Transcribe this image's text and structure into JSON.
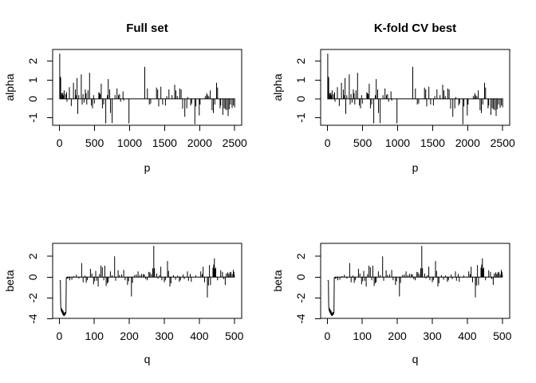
{
  "colors": {
    "background": "#ffffff",
    "line": "#000000",
    "text": "#000000"
  },
  "chart_data": {
    "type": "line",
    "layout": {
      "rows": 2,
      "cols": 2,
      "grid": false,
      "legend": "none"
    },
    "note": "2x2 grid of R base-graphics coefficient line plots; left column (Full set) and right column (K-fold CV best) display identical series",
    "charts": [
      {
        "id": "top-left",
        "row": "top",
        "type": "line",
        "title": "Full set",
        "xlabel": "p",
        "ylabel": "alpha",
        "x_ticks": [
          0,
          500,
          1000,
          1500,
          2000,
          2500
        ],
        "y_ticks": [
          -1,
          0,
          1,
          2
        ],
        "xlim": [
          -99,
          2600
        ],
        "ylim": [
          -1.4,
          2.62
        ],
        "grid": false,
        "legend": "none",
        "series_ref": "alpha"
      },
      {
        "id": "top-right",
        "row": "top",
        "type": "line",
        "title": "K-fold CV best",
        "xlabel": "p",
        "ylabel": "alpha",
        "x_ticks": [
          0,
          500,
          1000,
          1500,
          2000,
          2500
        ],
        "y_ticks": [
          -1,
          0,
          1,
          2
        ],
        "xlim": [
          -99,
          2600
        ],
        "ylim": [
          -1.4,
          2.62
        ],
        "grid": false,
        "legend": "none",
        "series_ref": "alpha"
      },
      {
        "id": "bottom-left",
        "row": "bottom",
        "type": "line",
        "title": "",
        "xlabel": "q",
        "ylabel": "beta",
        "x_ticks": [
          0,
          100,
          200,
          300,
          400,
          500
        ],
        "y_ticks": [
          -4,
          -2,
          0,
          2
        ],
        "xlim": [
          -19,
          521
        ],
        "ylim": [
          -3.96,
          3.24
        ],
        "grid": false,
        "legend": "none",
        "series_ref": "beta"
      },
      {
        "id": "bottom-right",
        "row": "bottom",
        "type": "line",
        "title": "",
        "xlabel": "q",
        "ylabel": "beta",
        "x_ticks": [
          0,
          100,
          200,
          300,
          400,
          500
        ],
        "y_ticks": [
          -4,
          -2,
          0,
          2
        ],
        "xlim": [
          -19,
          521
        ],
        "ylim": [
          -3.96,
          3.24
        ],
        "grid": false,
        "legend": "none",
        "series_ref": "beta"
      }
    ],
    "series": {
      "alpha": {
        "n_points": 2500,
        "baseline": 0,
        "spikes": [
          [
            2,
            2.4
          ],
          [
            10,
            1.18
          ],
          [
            16,
            1.12
          ],
          [
            30,
            0.3
          ],
          [
            38,
            0.22
          ],
          [
            46,
            0.32
          ],
          [
            58,
            0.2
          ],
          [
            65,
            0.45
          ],
          [
            85,
            0.25
          ],
          [
            100,
            0.35
          ],
          [
            106,
            -0.15
          ],
          [
            140,
            0.62
          ],
          [
            167,
            -0.38
          ],
          [
            198,
            0.85
          ],
          [
            225,
            0.5
          ],
          [
            233,
            0.2
          ],
          [
            250,
            1.1
          ],
          [
            260,
            -0.8
          ],
          [
            275,
            0.2
          ],
          [
            310,
            1.3
          ],
          [
            322,
            -0.3
          ],
          [
            335,
            0.25
          ],
          [
            350,
            -0.2
          ],
          [
            368,
            0.5
          ],
          [
            378,
            0.3
          ],
          [
            388,
            -0.3
          ],
          [
            405,
            0.45
          ],
          [
            428,
            1.38
          ],
          [
            455,
            -0.35
          ],
          [
            470,
            -0.5
          ],
          [
            485,
            0.2
          ],
          [
            497,
            -0.25
          ],
          [
            560,
            0.35
          ],
          [
            572,
            0.3
          ],
          [
            580,
            0.25
          ],
          [
            595,
            0.8
          ],
          [
            612,
            -0.5
          ],
          [
            630,
            -0.3
          ],
          [
            659,
            -1.3
          ],
          [
            682,
            0.2
          ],
          [
            695,
            1.05
          ],
          [
            715,
            0.5
          ],
          [
            727,
            -0.75
          ],
          [
            751,
            -1.28
          ],
          [
            791,
            0.2
          ],
          [
            820,
            0.55
          ],
          [
            841,
            0.2
          ],
          [
            856,
            0.25
          ],
          [
            871,
            -0.15
          ],
          [
            906,
            0.4
          ],
          [
            916,
            -0.1
          ],
          [
            991,
            -1.3
          ],
          [
            1216,
            1.7
          ],
          [
            1254,
            0.55
          ],
          [
            1281,
            -0.3
          ],
          [
            1301,
            -0.25
          ],
          [
            1384,
            0.6
          ],
          [
            1401,
            0.5
          ],
          [
            1416,
            -0.4
          ],
          [
            1446,
            0.65
          ],
          [
            1471,
            -0.3
          ],
          [
            1511,
            -0.35
          ],
          [
            1531,
            0.15
          ],
          [
            1561,
            0.5
          ],
          [
            1606,
            0.2
          ],
          [
            1643,
            0.75
          ],
          [
            1661,
            0.45
          ],
          [
            1681,
            0.15
          ],
          [
            1716,
            0.55
          ],
          [
            1736,
            0.5
          ],
          [
            1757,
            -0.52
          ],
          [
            1788,
            -0.95
          ],
          [
            1816,
            -0.5
          ],
          [
            1831,
            0.1
          ],
          [
            1872,
            -0.35
          ],
          [
            1886,
            -0.25
          ],
          [
            1931,
            -1.35
          ],
          [
            1946,
            -0.4
          ],
          [
            1994,
            -0.88
          ],
          [
            2006,
            -0.3
          ],
          [
            2081,
            0.15
          ],
          [
            2101,
            0.3
          ],
          [
            2111,
            0.2
          ],
          [
            2131,
            0.15
          ],
          [
            2151,
            0.45
          ],
          [
            2177,
            -0.6
          ],
          [
            2196,
            -0.75
          ],
          [
            2216,
            -0.3
          ],
          [
            2241,
            0.85
          ],
          [
            2256,
            0.6
          ],
          [
            2291,
            -0.5
          ],
          [
            2301,
            -0.35
          ],
          [
            2331,
            -0.85
          ],
          [
            2351,
            -0.5
          ],
          [
            2368,
            -0.55
          ],
          [
            2386,
            -0.6
          ],
          [
            2406,
            -0.9
          ],
          [
            2421,
            -0.55
          ],
          [
            2441,
            -0.3
          ],
          [
            2463,
            -0.48
          ],
          [
            2481,
            -0.35
          ],
          [
            2500,
            -0.45
          ]
        ]
      },
      "beta": {
        "n_points": 500,
        "baseline": 0,
        "prefix_curve": [
          [
            1,
            -0.3
          ],
          [
            2,
            -0.32
          ],
          [
            3,
            -0.35
          ],
          [
            4,
            -2.78
          ],
          [
            5,
            -3.1
          ],
          [
            6,
            -3.3
          ],
          [
            7,
            -3.0
          ],
          [
            8,
            -3.45
          ],
          [
            9,
            -3.15
          ],
          [
            10,
            -3.6
          ],
          [
            11,
            -3.25
          ],
          [
            12,
            -3.7
          ],
          [
            13,
            -3.4
          ],
          [
            14,
            -3.73
          ],
          [
            15,
            -3.45
          ],
          [
            16,
            -3.65
          ],
          [
            17,
            -3.35
          ],
          [
            18,
            -3.5
          ],
          [
            19,
            -3.4
          ],
          [
            20,
            -0.05
          ]
        ],
        "spikes": [
          [
            23,
            -0.15
          ],
          [
            26,
            -0.12
          ],
          [
            30,
            -0.3
          ],
          [
            36,
            -0.25
          ],
          [
            42,
            0.1
          ],
          [
            49,
            0.22
          ],
          [
            56,
            -0.15
          ],
          [
            64,
            1.35
          ],
          [
            68,
            -0.5
          ],
          [
            73,
            0.15
          ],
          [
            77,
            -0.55
          ],
          [
            80,
            -0.3
          ],
          [
            89,
            0.8
          ],
          [
            93,
            0.35
          ],
          [
            98,
            -0.7
          ],
          [
            101,
            -0.4
          ],
          [
            104,
            0.6
          ],
          [
            107,
            -0.35
          ],
          [
            111,
            -0.9
          ],
          [
            115,
            0.3
          ],
          [
            119,
            1.1
          ],
          [
            123,
            0.95
          ],
          [
            127,
            -0.3
          ],
          [
            130,
            1.1
          ],
          [
            134,
            -0.85
          ],
          [
            137,
            -0.6
          ],
          [
            140,
            -0.5
          ],
          [
            146,
            0.55
          ],
          [
            151,
            0.2
          ],
          [
            158,
            2.0
          ],
          [
            161,
            -0.35
          ],
          [
            168,
            0.65
          ],
          [
            172,
            0.2
          ],
          [
            178,
            0.25
          ],
          [
            184,
            0.7
          ],
          [
            188,
            -0.3
          ],
          [
            195,
            -0.75
          ],
          [
            198,
            -0.4
          ],
          [
            206,
            -1.85
          ],
          [
            209,
            -0.55
          ],
          [
            215,
            0.2
          ],
          [
            220,
            0.25
          ],
          [
            225,
            0.55
          ],
          [
            230,
            0.2
          ],
          [
            235,
            0.3
          ],
          [
            240,
            0.3
          ],
          [
            243,
            0.25
          ],
          [
            247,
            -0.2
          ],
          [
            251,
            -0.3
          ],
          [
            256,
            0.5
          ],
          [
            259,
            0.45
          ],
          [
            263,
            0.3
          ],
          [
            267,
            0.85
          ],
          [
            270,
            3.0
          ],
          [
            272,
            0.85
          ],
          [
            278,
            0.35
          ],
          [
            282,
            -0.15
          ],
          [
            286,
            0.2
          ],
          [
            290,
            1.0
          ],
          [
            293,
            -0.3
          ],
          [
            300,
            -0.5
          ],
          [
            303,
            -0.3
          ],
          [
            309,
            1.55
          ],
          [
            312,
            0.6
          ],
          [
            316,
            -0.9
          ],
          [
            319,
            -0.6
          ],
          [
            326,
            0.2
          ],
          [
            332,
            -0.25
          ],
          [
            338,
            0.15
          ],
          [
            343,
            -0.45
          ],
          [
            346,
            -0.3
          ],
          [
            354,
            0.25
          ],
          [
            357,
            -0.2
          ],
          [
            366,
            0.55
          ],
          [
            369,
            -0.35
          ],
          [
            374,
            0.3
          ],
          [
            377,
            -0.45
          ],
          [
            390,
            0.15
          ],
          [
            404,
            0.55
          ],
          [
            408,
            0.3
          ],
          [
            411,
            1.0
          ],
          [
            415,
            -0.5
          ],
          [
            423,
            -1.95
          ],
          [
            426,
            -0.8
          ],
          [
            429,
            1.15
          ],
          [
            432,
            -0.77
          ],
          [
            439,
            0.9
          ],
          [
            441,
            1.2
          ],
          [
            443,
            1.8
          ],
          [
            445,
            0.8
          ],
          [
            447,
            0.9
          ],
          [
            452,
            -0.3
          ],
          [
            461,
            0.65
          ],
          [
            466,
            0.5
          ],
          [
            470,
            -0.2
          ],
          [
            474,
            -0.75
          ],
          [
            477,
            0.35
          ],
          [
            481,
            0.45
          ],
          [
            484,
            0.3
          ],
          [
            487,
            0.45
          ],
          [
            490,
            0.5
          ],
          [
            494,
            0.3
          ],
          [
            497,
            0.7
          ],
          [
            499,
            0.5
          ],
          [
            500,
            0.2
          ]
        ]
      }
    }
  }
}
